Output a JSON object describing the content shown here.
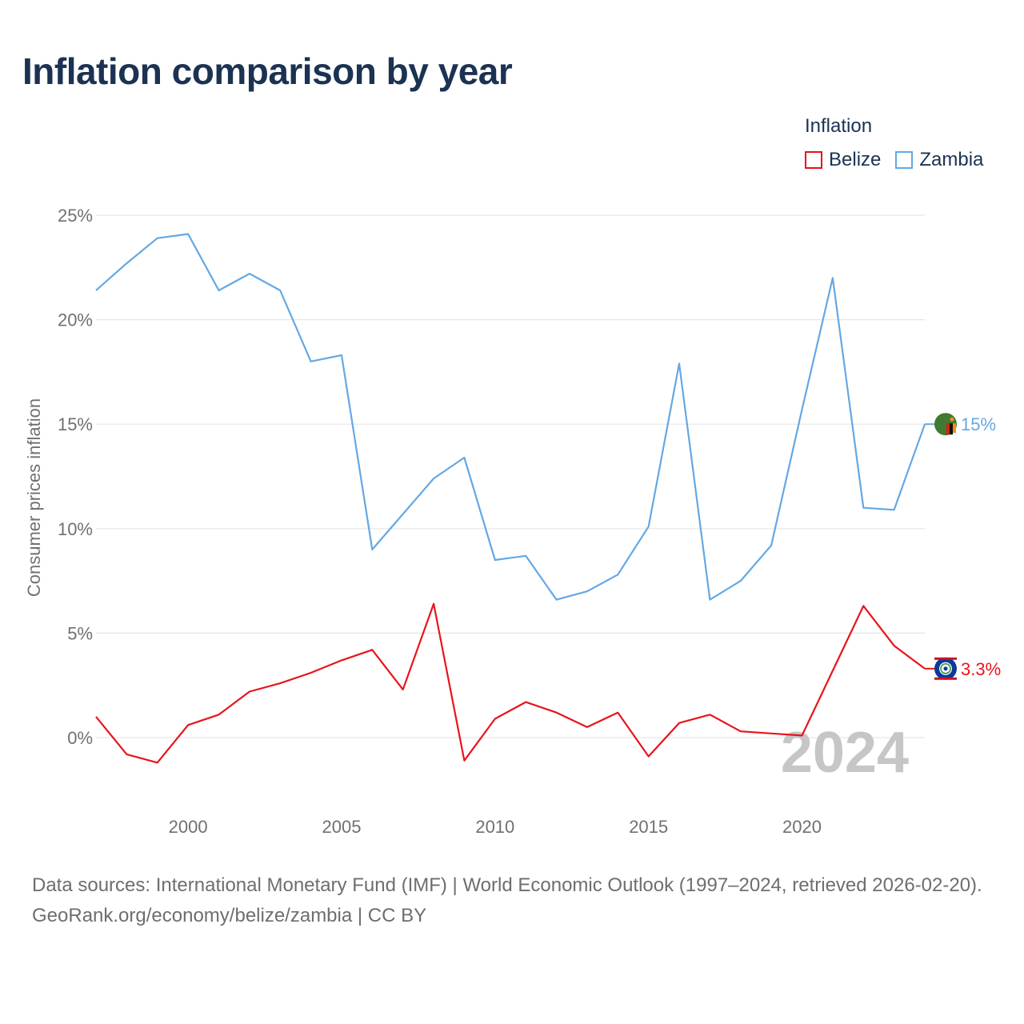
{
  "title": "Inflation comparison by year",
  "legend": {
    "title": "Inflation",
    "items": [
      {
        "label": "Belize",
        "color": "#e8141b"
      },
      {
        "label": "Zambia",
        "color": "#64a8e4"
      }
    ]
  },
  "footer": {
    "source": "Data sources: International Monetary Fund (IMF) | World Economic Outlook (1997–2024, retrieved 2026-02-20).",
    "credit": "GeoRank.org/economy/belize/zambia | CC BY"
  },
  "chart_data": {
    "type": "line",
    "title": "Inflation comparison by year",
    "xlabel": "",
    "ylabel": "Consumer prices inflation",
    "x": [
      1997,
      1998,
      1999,
      2000,
      2001,
      2002,
      2003,
      2004,
      2005,
      2006,
      2007,
      2008,
      2009,
      2010,
      2011,
      2012,
      2013,
      2014,
      2015,
      2016,
      2017,
      2018,
      2019,
      2020,
      2021,
      2022,
      2023,
      2024
    ],
    "xlim": [
      1997,
      2024
    ],
    "ylim": [
      -3.5,
      26
    ],
    "x_ticks": [
      2000,
      2005,
      2010,
      2015,
      2020
    ],
    "x_tick_labels": [
      "2000",
      "2005",
      "2010",
      "2015",
      "2020"
    ],
    "y_ticks": [
      0,
      5,
      10,
      15,
      20,
      25
    ],
    "y_tick_labels": [
      "0%",
      "5%",
      "10%",
      "15%",
      "20%",
      "25%"
    ],
    "year_label": "2024",
    "series": [
      {
        "name": "Zambia",
        "color": "#64a8e4",
        "end_label": "15%",
        "flag_colors": [
          "#3f7a30",
          "#f08f1e",
          "#d62018",
          "#111111"
        ],
        "values": [
          21.4,
          22.7,
          23.9,
          24.1,
          21.4,
          22.2,
          21.4,
          18.0,
          18.3,
          9.0,
          10.7,
          12.4,
          13.4,
          8.5,
          8.7,
          6.6,
          7.0,
          7.8,
          10.1,
          17.9,
          6.6,
          7.5,
          9.2,
          15.7,
          22.0,
          11.0,
          10.9,
          15.0
        ]
      },
      {
        "name": "Belize",
        "color": "#e8141b",
        "end_label": "3.3%",
        "flag_colors": [
          "#0a3a9a",
          "#ce1126",
          "#ffffff",
          "#2f8f3a"
        ],
        "values": [
          1.0,
          -0.8,
          -1.2,
          0.6,
          1.1,
          2.2,
          2.6,
          3.1,
          3.7,
          4.2,
          2.3,
          6.4,
          -1.1,
          0.9,
          1.7,
          1.2,
          0.5,
          1.2,
          -0.9,
          0.7,
          1.1,
          0.3,
          0.2,
          0.1,
          3.2,
          6.3,
          4.4,
          3.3
        ]
      }
    ]
  }
}
